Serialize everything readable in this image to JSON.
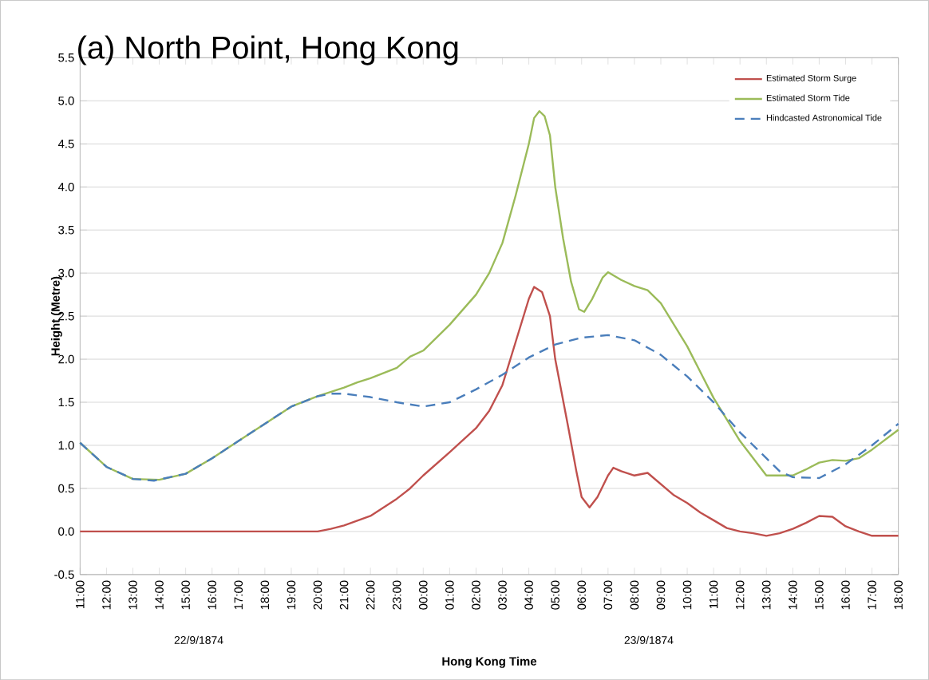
{
  "chart_data": {
    "type": "line",
    "title": "(a) North Point, Hong Kong",
    "xlabel": "Hong Kong Time",
    "ylabel": "Height (Metre)",
    "annotations": [
      "22/9/1874",
      "23/9/1874"
    ],
    "xlim": [
      "1874-09-22T11:00",
      "1874-09-23T18:00"
    ],
    "ylim": [
      -0.5,
      5.5
    ],
    "yticks": [
      {
        "value": -0.5,
        "label": "-0.5"
      },
      {
        "value": 0,
        "label": "0.0"
      },
      {
        "value": 0.5,
        "label": "0.5"
      },
      {
        "value": 1,
        "label": "1.0"
      },
      {
        "value": 1.5,
        "label": "1.5"
      },
      {
        "value": 2,
        "label": "2.0"
      },
      {
        "value": 2.5,
        "label": "2.5"
      },
      {
        "value": 3,
        "label": "3.0"
      },
      {
        "value": 3.5,
        "label": "3.5"
      },
      {
        "value": 4,
        "label": "4.0"
      },
      {
        "value": 4.5,
        "label": "4.5"
      },
      {
        "value": 5,
        "label": "5.0"
      },
      {
        "value": 5.5,
        "label": "5.5"
      }
    ],
    "xticks": [
      {
        "value": "1874-09-22T11:00",
        "label": "11:00"
      },
      {
        "value": "1874-09-22T12:00",
        "label": "12:00"
      },
      {
        "value": "1874-09-22T13:00",
        "label": "13:00"
      },
      {
        "value": "1874-09-22T14:00",
        "label": "14:00"
      },
      {
        "value": "1874-09-22T15:00",
        "label": "15:00"
      },
      {
        "value": "1874-09-22T16:00",
        "label": "16:00"
      },
      {
        "value": "1874-09-22T17:00",
        "label": "17:00"
      },
      {
        "value": "1874-09-22T18:00",
        "label": "18:00"
      },
      {
        "value": "1874-09-22T19:00",
        "label": "19:00"
      },
      {
        "value": "1874-09-22T20:00",
        "label": "20:00"
      },
      {
        "value": "1874-09-22T21:00",
        "label": "21:00"
      },
      {
        "value": "1874-09-22T22:00",
        "label": "22:00"
      },
      {
        "value": "1874-09-22T23:00",
        "label": "23:00"
      },
      {
        "value": "1874-09-23T00:00",
        "label": "00:00"
      },
      {
        "value": "1874-09-23T01:00",
        "label": "01:00"
      },
      {
        "value": "1874-09-23T02:00",
        "label": "02:00"
      },
      {
        "value": "1874-09-23T03:00",
        "label": "03:00"
      },
      {
        "value": "1874-09-23T04:00",
        "label": "04:00"
      },
      {
        "value": "1874-09-23T05:00",
        "label": "05:00"
      },
      {
        "value": "1874-09-23T06:00",
        "label": "06:00"
      },
      {
        "value": "1874-09-23T07:00",
        "label": "07:00"
      },
      {
        "value": "1874-09-23T08:00",
        "label": "08:00"
      },
      {
        "value": "1874-09-23T09:00",
        "label": "09:00"
      },
      {
        "value": "1874-09-23T10:00",
        "label": "10:00"
      },
      {
        "value": "1874-09-23T11:00",
        "label": "11:00"
      },
      {
        "value": "1874-09-23T12:00",
        "label": "12:00"
      },
      {
        "value": "1874-09-23T13:00",
        "label": "13:00"
      },
      {
        "value": "1874-09-23T14:00",
        "label": "14:00"
      },
      {
        "value": "1874-09-23T15:00",
        "label": "15:00"
      },
      {
        "value": "1874-09-23T16:00",
        "label": "16:00"
      },
      {
        "value": "1874-09-23T17:00",
        "label": "17:00"
      },
      {
        "value": "1874-09-23T18:00",
        "label": "18:00"
      }
    ],
    "grid": "y",
    "legend": "top right",
    "marker": "none",
    "series": [
      {
        "name": "Estimated Storm Surge",
        "color": "#c0504d",
        "line_style": "solid",
        "x": [
          "1874-09-22T11:00",
          "1874-09-22T12:00",
          "1874-09-22T13:00",
          "1874-09-22T14:00",
          "1874-09-22T15:00",
          "1874-09-22T16:00",
          "1874-09-22T17:00",
          "1874-09-22T18:00",
          "1874-09-22T19:00",
          "1874-09-22T20:00",
          "1874-09-22T20:30",
          "1874-09-22T21:00",
          "1874-09-22T22:00",
          "1874-09-22T23:00",
          "1874-09-22T23:30",
          "1874-09-23T00:00",
          "1874-09-23T01:00",
          "1874-09-23T02:00",
          "1874-09-23T02:30",
          "1874-09-23T03:00",
          "1874-09-23T03:30",
          "1874-09-23T04:00",
          "1874-09-23T04:12",
          "1874-09-23T04:30",
          "1874-09-23T04:48",
          "1874-09-23T05:00",
          "1874-09-23T05:30",
          "1874-09-23T05:48",
          "1874-09-23T06:00",
          "1874-09-23T06:18",
          "1874-09-23T06:36",
          "1874-09-23T07:00",
          "1874-09-23T07:12",
          "1874-09-23T07:30",
          "1874-09-23T08:00",
          "1874-09-23T08:30",
          "1874-09-23T09:00",
          "1874-09-23T09:30",
          "1874-09-23T10:00",
          "1874-09-23T10:30",
          "1874-09-23T11:00",
          "1874-09-23T11:30",
          "1874-09-23T12:00",
          "1874-09-23T12:30",
          "1874-09-23T13:00",
          "1874-09-23T13:30",
          "1874-09-23T14:00",
          "1874-09-23T14:30",
          "1874-09-23T15:00",
          "1874-09-23T15:30",
          "1874-09-23T16:00",
          "1874-09-23T16:30",
          "1874-09-23T17:00",
          "1874-09-23T18:00"
        ],
        "values": [
          0,
          0,
          0,
          0,
          0,
          0,
          0,
          0,
          0,
          0,
          0.03,
          0.07,
          0.18,
          0.38,
          0.5,
          0.65,
          0.92,
          1.2,
          1.4,
          1.7,
          2.2,
          2.7,
          2.84,
          2.78,
          2.5,
          2.0,
          1.2,
          0.7,
          0.4,
          0.28,
          0.4,
          0.65,
          0.74,
          0.7,
          0.65,
          0.68,
          0.55,
          0.42,
          0.33,
          0.22,
          0.13,
          0.04,
          0.0,
          -0.02,
          -0.05,
          -0.02,
          0.03,
          0.1,
          0.18,
          0.17,
          0.06,
          0.0,
          -0.05,
          -0.05
        ]
      },
      {
        "name": "Estimated Storm Tide",
        "color": "#9bbb59",
        "line_style": "solid",
        "x": [
          "1874-09-22T11:00",
          "1874-09-22T12:00",
          "1874-09-22T13:00",
          "1874-09-22T14:00",
          "1874-09-22T15:00",
          "1874-09-22T16:00",
          "1874-09-22T17:00",
          "1874-09-22T18:00",
          "1874-09-22T19:00",
          "1874-09-22T20:00",
          "1874-09-22T21:00",
          "1874-09-22T21:30",
          "1874-09-22T22:00",
          "1874-09-22T23:00",
          "1874-09-22T23:30",
          "1874-09-23T00:00",
          "1874-09-23T01:00",
          "1874-09-23T02:00",
          "1874-09-23T02:30",
          "1874-09-23T03:00",
          "1874-09-23T03:30",
          "1874-09-23T04:00",
          "1874-09-23T04:12",
          "1874-09-23T04:24",
          "1874-09-23T04:36",
          "1874-09-23T04:48",
          "1874-09-23T05:00",
          "1874-09-23T05:18",
          "1874-09-23T05:36",
          "1874-09-23T05:54",
          "1874-09-23T06:06",
          "1874-09-23T06:24",
          "1874-09-23T06:48",
          "1874-09-23T07:00",
          "1874-09-23T07:30",
          "1874-09-23T08:00",
          "1874-09-23T08:30",
          "1874-09-23T09:00",
          "1874-09-23T09:30",
          "1874-09-23T10:00",
          "1874-09-23T10:30",
          "1874-09-23T11:00",
          "1874-09-23T11:30",
          "1874-09-23T12:00",
          "1874-09-23T12:30",
          "1874-09-23T13:00",
          "1874-09-23T13:30",
          "1874-09-23T14:00",
          "1874-09-23T14:30",
          "1874-09-23T15:00",
          "1874-09-23T15:30",
          "1874-09-23T16:00",
          "1874-09-23T16:30",
          "1874-09-23T17:00",
          "1874-09-23T18:00"
        ],
        "values": [
          1.03,
          0.75,
          0.61,
          0.6,
          0.67,
          0.85,
          1.05,
          1.25,
          1.45,
          1.57,
          1.67,
          1.73,
          1.78,
          1.9,
          2.03,
          2.1,
          2.4,
          2.75,
          3.0,
          3.35,
          3.9,
          4.5,
          4.8,
          4.88,
          4.82,
          4.6,
          4.0,
          3.4,
          2.9,
          2.58,
          2.55,
          2.7,
          2.95,
          3.01,
          2.92,
          2.85,
          2.8,
          2.65,
          2.4,
          2.15,
          1.85,
          1.55,
          1.3,
          1.05,
          0.85,
          0.65,
          0.65,
          0.65,
          0.72,
          0.8,
          0.83,
          0.82,
          0.85,
          0.95,
          1.18
        ]
      },
      {
        "name": "Hindcasted Astronomical Tide",
        "color": "#4a7ebb",
        "line_style": "dashed",
        "x": [
          "1874-09-22T11:00",
          "1874-09-22T12:00",
          "1874-09-22T13:00",
          "1874-09-22T13:48",
          "1874-09-22T15:00",
          "1874-09-22T16:00",
          "1874-09-22T17:00",
          "1874-09-22T18:00",
          "1874-09-22T19:00",
          "1874-09-22T20:00",
          "1874-09-22T20:30",
          "1874-09-22T21:00",
          "1874-09-22T22:00",
          "1874-09-22T23:00",
          "1874-09-23T00:00",
          "1874-09-23T01:00",
          "1874-09-23T02:00",
          "1874-09-23T03:00",
          "1874-09-23T04:00",
          "1874-09-23T05:00",
          "1874-09-23T06:00",
          "1874-09-23T07:00",
          "1874-09-23T08:00",
          "1874-09-23T09:00",
          "1874-09-23T10:00",
          "1874-09-23T11:00",
          "1874-09-23T12:00",
          "1874-09-23T13:00",
          "1874-09-23T13:30",
          "1874-09-23T14:00",
          "1874-09-23T15:00",
          "1874-09-23T16:00",
          "1874-09-23T17:00",
          "1874-09-23T18:00"
        ],
        "values": [
          1.03,
          0.75,
          0.61,
          0.59,
          0.67,
          0.85,
          1.05,
          1.25,
          1.45,
          1.57,
          1.6,
          1.6,
          1.56,
          1.5,
          1.45,
          1.5,
          1.65,
          1.82,
          2.02,
          2.17,
          2.25,
          2.28,
          2.22,
          2.05,
          1.8,
          1.5,
          1.15,
          0.85,
          0.7,
          0.63,
          0.62,
          0.78,
          1.0,
          1.25
        ]
      }
    ]
  }
}
